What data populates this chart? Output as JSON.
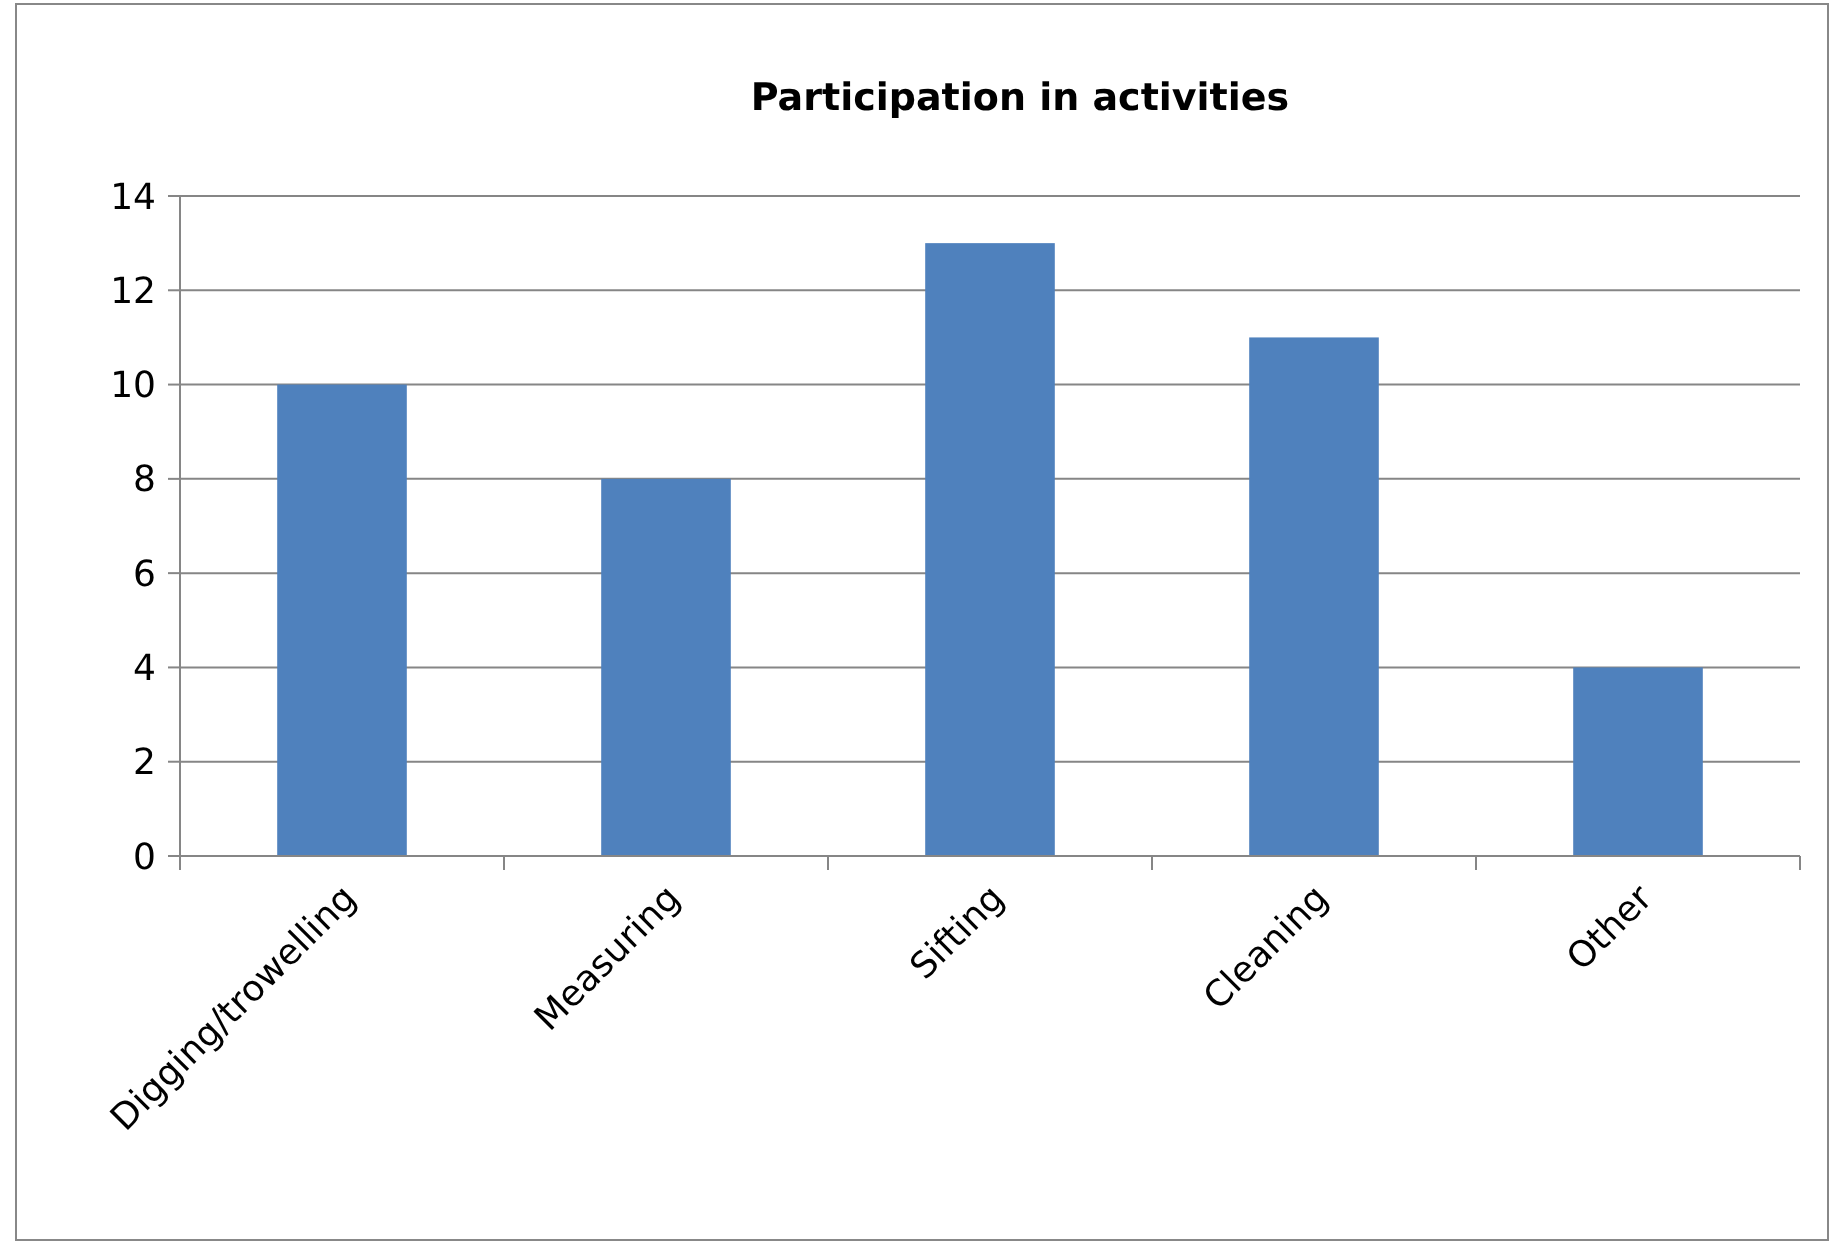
{
  "chart_data": {
    "type": "bar",
    "title": "Participation in activities",
    "categories": [
      "Digging/trowelling",
      "Measuring",
      "Sifting",
      "Cleaning",
      "Other"
    ],
    "values": [
      10,
      8,
      13,
      11,
      4
    ],
    "color": "#4f81bd",
    "ylim": [
      0,
      14
    ],
    "yticks": [
      0,
      2,
      4,
      6,
      8,
      10,
      12,
      14
    ],
    "grid": "y"
  }
}
